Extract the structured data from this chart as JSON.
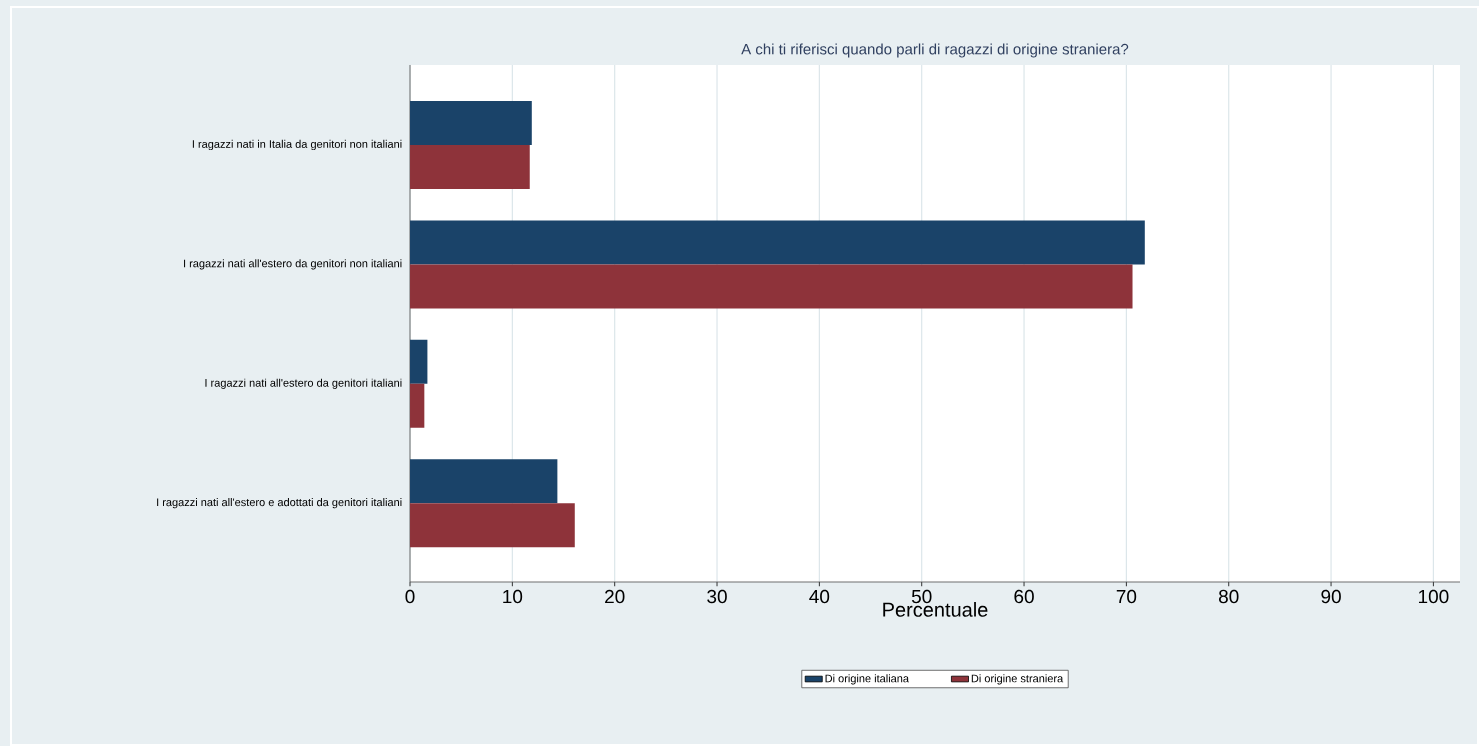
{
  "chart_data": {
    "type": "bar",
    "orientation": "horizontal",
    "title": "A chi ti riferisci quando parli di ragazzi di origine straniera?",
    "xlabel": "Percentuale",
    "categories": [
      "I ragazzi nati in Italia da genitori non italiani",
      "I ragazzi nati all'estero da genitori non italiani",
      "I ragazzi nati all'estero da genitori italiani",
      "I ragazzi nati all'estero e adottati da genitori italiani"
    ],
    "series": [
      {
        "name": "Di origine italiana",
        "color": "#1a4369",
        "values": [
          11.9,
          71.8,
          1.7,
          14.4
        ]
      },
      {
        "name": "Di origine straniera",
        "color": "#8e333a",
        "values": [
          11.7,
          70.6,
          1.4,
          16.1
        ]
      }
    ],
    "xlim": [
      0,
      102.6
    ],
    "xticks": [
      0,
      10,
      20,
      30,
      40,
      50,
      60,
      70,
      80,
      90,
      100
    ],
    "grid": "x",
    "legend": "bottom"
  }
}
